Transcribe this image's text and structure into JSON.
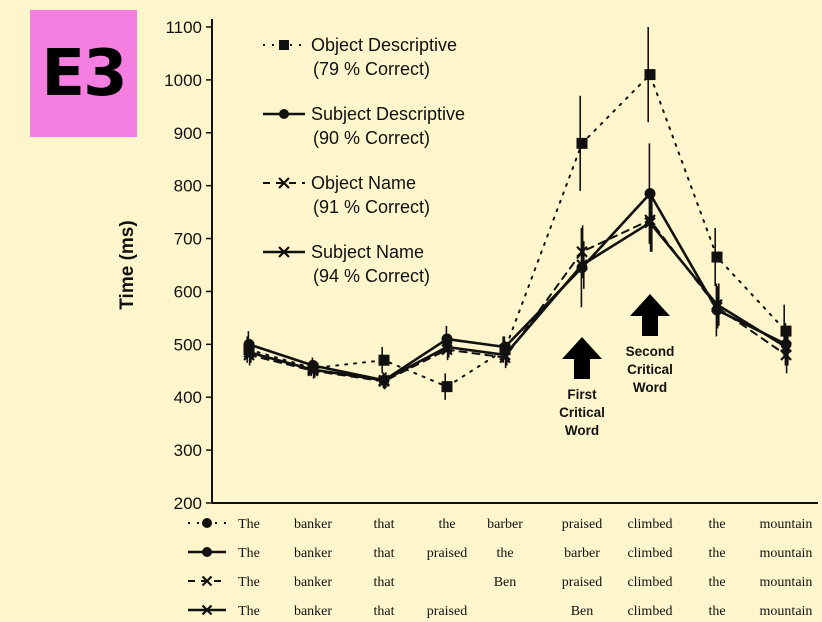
{
  "badge": {
    "label": "E3",
    "color": "#f57fe0"
  },
  "chart_data": {
    "type": "line",
    "title": "",
    "xlabel": "",
    "ylabel": "Time (ms)",
    "ylim": [
      200,
      1100
    ],
    "yticks": [
      200,
      300,
      400,
      500,
      600,
      700,
      800,
      900,
      "1000",
      "1100"
    ],
    "ytick_labels": [
      "200",
      "300",
      "400",
      "500",
      "600",
      "700",
      "800",
      "900",
      "1000",
      "1100"
    ],
    "x": [
      1,
      2,
      3,
      4,
      5,
      6,
      7,
      8,
      9
    ],
    "grid": false,
    "legend_position": "top-left",
    "series": [
      {
        "name": "Object Descriptive",
        "accuracy": "(79 % Correct)",
        "marker": "square",
        "line_style": "dotted",
        "values": [
          490,
          455,
          470,
          420,
          490,
          880,
          1010,
          665,
          525
        ],
        "errors": [
          25,
          15,
          25,
          25,
          25,
          90,
          90,
          55,
          50
        ]
      },
      {
        "name": "Subject Descriptive",
        "accuracy": "(90 % Correct)",
        "marker": "circle",
        "line_style": "solid",
        "values": [
          500,
          460,
          432,
          510,
          495,
          645,
          785,
          565,
          500
        ],
        "errors": [
          25,
          15,
          15,
          25,
          20,
          75,
          95,
          50,
          40
        ]
      },
      {
        "name": "Object Name",
        "accuracy": "(91 % Correct)",
        "marker": "x",
        "line_style": "dashed",
        "values": [
          480,
          450,
          430,
          490,
          475,
          675,
          735,
          570,
          480
        ],
        "errors": [
          20,
          15,
          15,
          20,
          20,
          50,
          60,
          40,
          35
        ]
      },
      {
        "name": "Subject Name",
        "accuracy": "(94 % Correct)",
        "marker": "x",
        "line_style": "solid",
        "values": [
          485,
          452,
          432,
          495,
          480,
          650,
          730,
          575,
          495
        ],
        "errors": [
          20,
          15,
          15,
          20,
          20,
          45,
          55,
          40,
          35
        ]
      }
    ],
    "sentences": [
      {
        "marker": "circle",
        "line_style": "dotted",
        "words": [
          "The",
          "banker",
          "that",
          "the",
          "barber",
          "praised",
          "climbed",
          "the",
          "mountain"
        ]
      },
      {
        "marker": "circle",
        "line_style": "solid",
        "words": [
          "The",
          "banker",
          "that",
          "praised",
          "the",
          "barber",
          "climbed",
          "the",
          "mountain"
        ]
      },
      {
        "marker": "x",
        "line_style": "dashed",
        "words": [
          "The",
          "banker",
          "that",
          "",
          "Ben",
          "praised",
          "climbed",
          "the",
          "mountain"
        ]
      },
      {
        "marker": "x",
        "line_style": "solid",
        "words": [
          "The",
          "banker",
          "that",
          "praised",
          "",
          "Ben",
          "climbed",
          "the",
          "mountain"
        ]
      }
    ],
    "annotations": [
      {
        "x": 6,
        "lines": [
          "First",
          "Critical",
          "Word"
        ]
      },
      {
        "x": 7,
        "lines": [
          "Second",
          "Critical",
          "Word"
        ]
      }
    ]
  }
}
